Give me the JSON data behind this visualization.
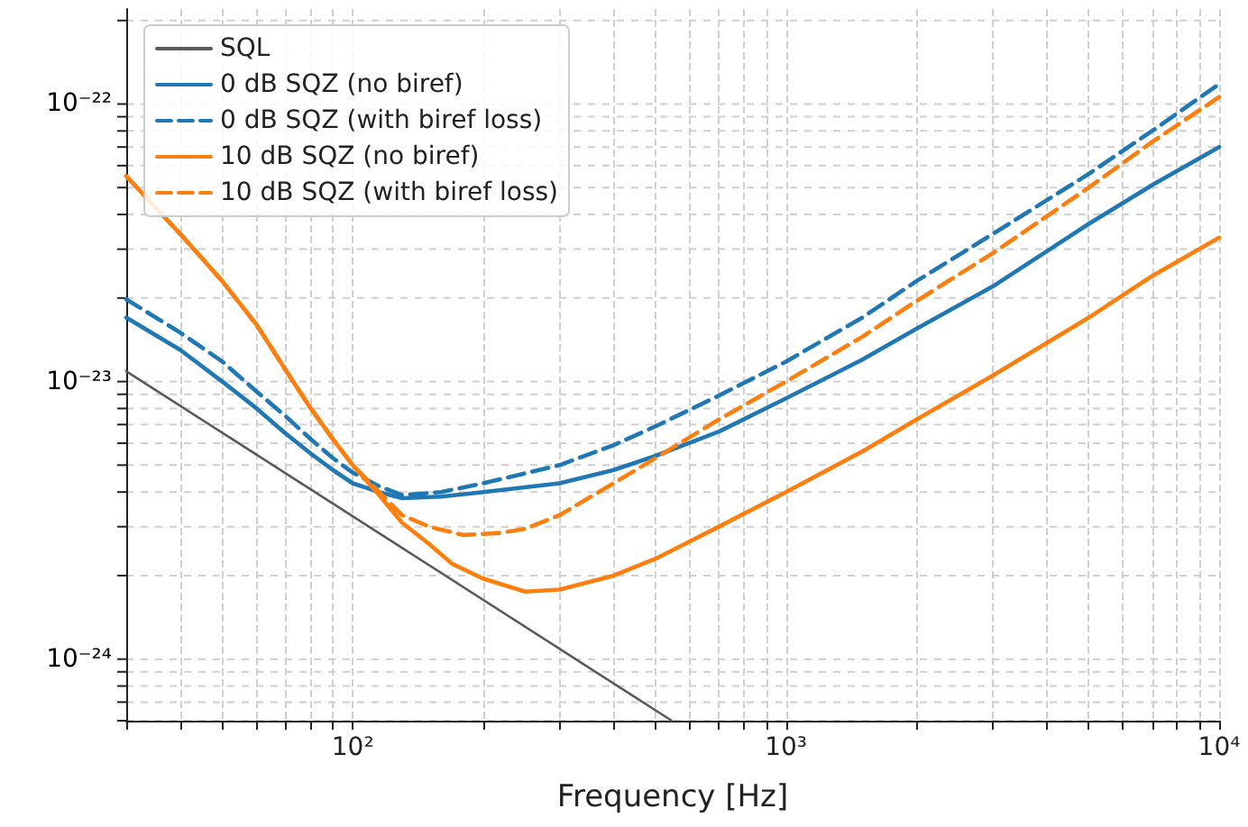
{
  "chart_data": {
    "type": "line",
    "xlabel": "Frequency [Hz]",
    "log": "xy",
    "grid": true,
    "legend": "top left",
    "marker": "none",
    "xlim": [
      30,
      10000
    ],
    "ylim": [
      6e-25,
      2.2e-22
    ],
    "xticks": [
      {
        "value": 30,
        "label": null
      },
      {
        "value": 40,
        "label": null
      },
      {
        "value": 50,
        "label": null
      },
      {
        "value": 60,
        "label": null
      },
      {
        "value": 70,
        "label": null
      },
      {
        "value": 80,
        "label": null
      },
      {
        "value": 90,
        "label": null
      },
      {
        "value": 100,
        "label": "10²"
      },
      {
        "value": 200,
        "label": null
      },
      {
        "value": 300,
        "label": null
      },
      {
        "value": 400,
        "label": null
      },
      {
        "value": 500,
        "label": null
      },
      {
        "value": 600,
        "label": null
      },
      {
        "value": 700,
        "label": null
      },
      {
        "value": 800,
        "label": null
      },
      {
        "value": 900,
        "label": null
      },
      {
        "value": 1000,
        "label": "10³"
      },
      {
        "value": 2000,
        "label": null
      },
      {
        "value": 3000,
        "label": null
      },
      {
        "value": 4000,
        "label": null
      },
      {
        "value": 5000,
        "label": null
      },
      {
        "value": 6000,
        "label": null
      },
      {
        "value": 7000,
        "label": null
      },
      {
        "value": 8000,
        "label": null
      },
      {
        "value": 9000,
        "label": null
      },
      {
        "value": 10000,
        "label": "10⁴"
      }
    ],
    "yticks": [
      {
        "value": 6e-25,
        "label": null
      },
      {
        "value": 7e-25,
        "label": null
      },
      {
        "value": 8e-25,
        "label": null
      },
      {
        "value": 9e-25,
        "label": null
      },
      {
        "value": 1e-24,
        "label": "10⁻²⁴"
      },
      {
        "value": 2e-24,
        "label": null
      },
      {
        "value": 3e-24,
        "label": null
      },
      {
        "value": 4e-24,
        "label": null
      },
      {
        "value": 5e-24,
        "label": null
      },
      {
        "value": 6e-24,
        "label": null
      },
      {
        "value": 7e-24,
        "label": null
      },
      {
        "value": 8e-24,
        "label": null
      },
      {
        "value": 9e-24,
        "label": null
      },
      {
        "value": 1e-23,
        "label": "10⁻²³"
      },
      {
        "value": 2e-23,
        "label": null
      },
      {
        "value": 3e-23,
        "label": null
      },
      {
        "value": 4e-23,
        "label": null
      },
      {
        "value": 5e-23,
        "label": null
      },
      {
        "value": 6e-23,
        "label": null
      },
      {
        "value": 7e-23,
        "label": null
      },
      {
        "value": 8e-23,
        "label": null
      },
      {
        "value": 9e-23,
        "label": null
      },
      {
        "value": 1e-22,
        "label": "10⁻²²"
      },
      {
        "value": 2e-22,
        "label": null
      }
    ],
    "series": [
      {
        "name": "SQL",
        "color": "#5a5a5a",
        "line_style": "solid",
        "x": [
          30,
          100,
          545
        ],
        "values": [
          1.09e-23,
          3.27e-24,
          6e-25
        ]
      },
      {
        "name": "0 dB SQZ (no biref)",
        "color": "#1f77b4",
        "line_style": "solid",
        "x": [
          30,
          40,
          50,
          60,
          70,
          80,
          90,
          100,
          115,
          130,
          160,
          200,
          300,
          400,
          500,
          700,
          1000,
          1500,
          2000,
          3000,
          5000,
          7000,
          10000
        ],
        "values": [
          1.7e-23,
          1.3e-23,
          1e-23,
          8e-24,
          6.5e-24,
          5.5e-24,
          4.8e-24,
          4.3e-24,
          4e-24,
          3.8e-24,
          3.85e-24,
          4e-24,
          4.3e-24,
          4.8e-24,
          5.4e-24,
          6.6e-24,
          8.7e-24,
          1.2e-23,
          1.55e-23,
          2.2e-23,
          3.7e-23,
          5.1e-23,
          7e-23
        ]
      },
      {
        "name": "0 dB SQZ (with biref loss)",
        "color": "#1f77b4",
        "line_style": "dashed",
        "x": [
          30,
          40,
          50,
          60,
          70,
          80,
          90,
          100,
          115,
          130,
          160,
          200,
          300,
          400,
          500,
          700,
          1000,
          1500,
          2000,
          3000,
          5000,
          7000,
          10000
        ],
        "values": [
          1.98e-23,
          1.5e-23,
          1.18e-23,
          9.2e-24,
          7.5e-24,
          6.2e-24,
          5.3e-24,
          4.7e-24,
          4.2e-24,
          3.9e-24,
          4e-24,
          4.3e-24,
          5e-24,
          5.9e-24,
          6.9e-24,
          8.9e-24,
          1.18e-23,
          1.7e-23,
          2.3e-23,
          3.4e-23,
          5.6e-23,
          8e-23,
          1.18e-22
        ]
      },
      {
        "name": "10 dB SQZ (no biref)",
        "color": "#ff7f0e",
        "line_style": "solid",
        "x": [
          30,
          40,
          50,
          60,
          70,
          80,
          90,
          100,
          115,
          130,
          150,
          170,
          200,
          250,
          300,
          400,
          500,
          700,
          1000,
          1500,
          2000,
          3000,
          5000,
          7000,
          10000
        ],
        "values": [
          5.5e-23,
          3.4e-23,
          2.3e-23,
          1.6e-23,
          1.1e-23,
          8e-24,
          6.2e-24,
          5e-24,
          3.9e-24,
          3.1e-24,
          2.6e-24,
          2.2e-24,
          1.95e-24,
          1.75e-24,
          1.78e-24,
          2e-24,
          2.3e-24,
          3e-24,
          4e-24,
          5.6e-24,
          7.3e-24,
          1.05e-23,
          1.7e-23,
          2.4e-23,
          3.3e-23
        ]
      },
      {
        "name": "10 dB SQZ (with biref loss)",
        "color": "#ff7f0e",
        "line_style": "dashed",
        "x": [
          30,
          40,
          50,
          60,
          70,
          80,
          90,
          100,
          115,
          130,
          150,
          180,
          220,
          250,
          300,
          400,
          500,
          700,
          1000,
          1500,
          2000,
          3000,
          5000,
          7000,
          10000
        ],
        "values": [
          5.5e-23,
          3.4e-23,
          2.3e-23,
          1.6e-23,
          1.1e-23,
          8e-24,
          6.2e-24,
          5e-24,
          4e-24,
          3.3e-24,
          3e-24,
          2.8e-24,
          2.85e-24,
          2.95e-24,
          3.3e-24,
          4.3e-24,
          5.3e-24,
          7.3e-24,
          1e-23,
          1.45e-23,
          1.95e-23,
          2.9e-23,
          5e-23,
          7.3e-23,
          1.06e-22
        ]
      }
    ]
  }
}
